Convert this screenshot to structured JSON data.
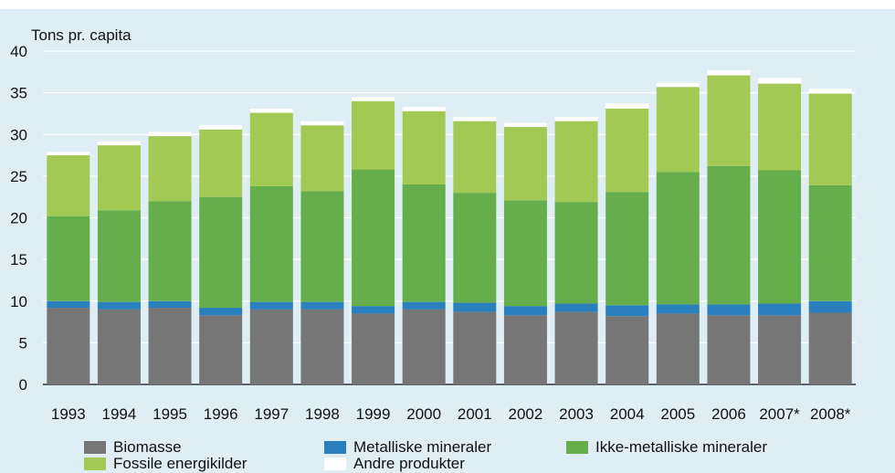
{
  "chart_data": {
    "type": "bar",
    "stacked": true,
    "title": "",
    "ylabel": "Tons pr. capita",
    "xlabel": "",
    "ylim": [
      0,
      40
    ],
    "yticks": [
      0,
      5,
      10,
      15,
      20,
      25,
      30,
      35,
      40
    ],
    "grid": "horizontal",
    "categories": [
      "1993",
      "1994",
      "1995",
      "1996",
      "1997",
      "1998",
      "1999",
      "2000",
      "2001",
      "2002",
      "2003",
      "2004",
      "2005",
      "2006",
      "2007*",
      "2008*"
    ],
    "series": [
      {
        "name": "Biomasse",
        "color": "#767676",
        "values": [
          9.2,
          9.0,
          9.2,
          8.3,
          9.0,
          9.0,
          8.5,
          9.0,
          8.7,
          8.3,
          8.7,
          8.2,
          8.5,
          8.3,
          8.3,
          8.6
        ]
      },
      {
        "name": "Metalliske mineraler",
        "color": "#2a7fbd",
        "values": [
          0.8,
          0.9,
          0.8,
          0.9,
          0.9,
          0.9,
          0.9,
          0.9,
          1.1,
          1.1,
          1.0,
          1.3,
          1.1,
          1.3,
          1.4,
          1.4
        ]
      },
      {
        "name": "Ikke-metalliske mineraler",
        "color": "#65ae4b",
        "values": [
          10.2,
          11.0,
          12.0,
          13.3,
          13.9,
          13.3,
          16.4,
          14.1,
          13.2,
          12.7,
          12.2,
          13.6,
          15.9,
          16.6,
          16.0,
          13.9
        ]
      },
      {
        "name": "Fossile energikilder",
        "color": "#a3c955",
        "values": [
          7.3,
          7.8,
          7.8,
          8.1,
          8.8,
          7.9,
          8.2,
          8.8,
          8.6,
          8.8,
          9.7,
          10.0,
          10.2,
          10.9,
          10.4,
          11.0
        ]
      },
      {
        "name": "Andre produkter",
        "color": "#ffffff",
        "values": [
          0.4,
          0.5,
          0.5,
          0.5,
          0.5,
          0.5,
          0.5,
          0.5,
          0.5,
          0.5,
          0.5,
          0.6,
          0.5,
          0.6,
          0.7,
          0.6
        ]
      }
    ],
    "legend_position": "bottom"
  }
}
